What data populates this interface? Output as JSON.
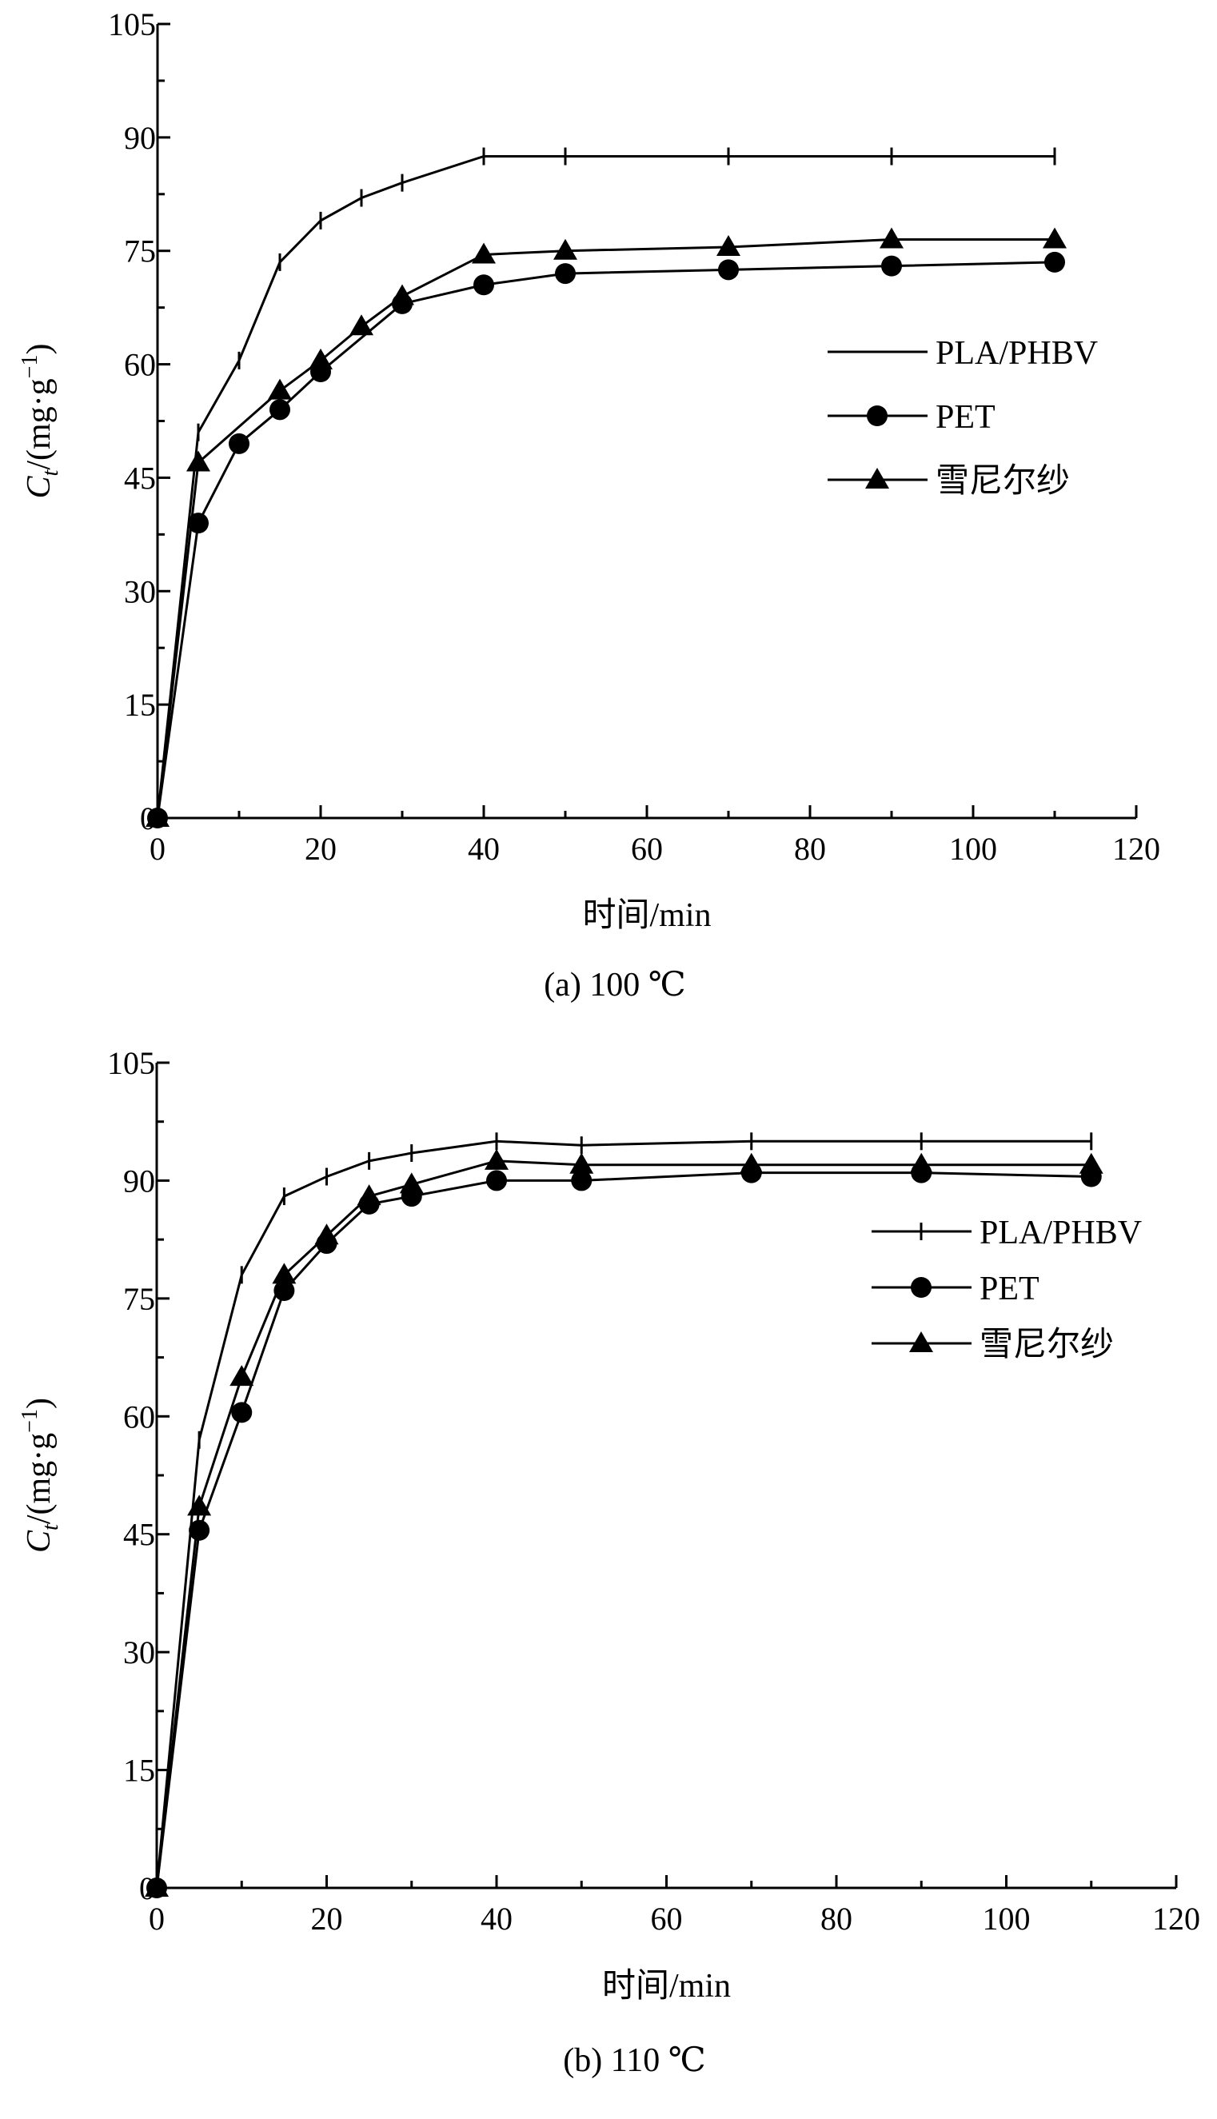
{
  "chart_data": [
    {
      "type": "line",
      "caption": "(a) 100 ℃",
      "xlabel": "时间/min",
      "ylabel_main": "C",
      "ylabel_sub": "t",
      "ylabel_unit": "/(mg·g",
      "ylabel_sup": "−1",
      "ylabel_close": ")",
      "xlim": [
        0,
        120
      ],
      "ylim": [
        0,
        105
      ],
      "xticks": [
        0,
        20,
        40,
        60,
        80,
        100,
        120
      ],
      "yticks": [
        0,
        15,
        30,
        45,
        60,
        75,
        90,
        105
      ],
      "grid": false,
      "legend_position": "center-right",
      "legend_tick_marker": false,
      "series": [
        {
          "name": "PLA/PHBV",
          "marker": "tick",
          "x": [
            0,
            5,
            10,
            15,
            20,
            25,
            30,
            40,
            50,
            70,
            90,
            110
          ],
          "y": [
            0,
            51,
            60.5,
            73.5,
            79,
            82,
            84,
            87.5,
            87.5,
            87.5,
            87.5,
            87.5
          ]
        },
        {
          "name": "PET",
          "marker": "circle",
          "x": [
            0,
            5,
            10,
            15,
            20,
            30,
            40,
            50,
            70,
            90,
            110
          ],
          "y": [
            0,
            39,
            49.5,
            54,
            59,
            68,
            70.5,
            72,
            72.5,
            73,
            73.5
          ]
        },
        {
          "name": "雪尼尔纱",
          "marker": "triangle",
          "x": [
            0,
            5,
            15,
            20,
            25,
            30,
            40,
            50,
            70,
            90,
            110
          ],
          "y": [
            0,
            47,
            56.5,
            60.5,
            65,
            69,
            74.5,
            75,
            75.5,
            76.5,
            76.5
          ]
        }
      ]
    },
    {
      "type": "line",
      "caption": "(b) 110 ℃",
      "xlabel": "时间/min",
      "ylabel_main": "C",
      "ylabel_sub": "t",
      "ylabel_unit": "/(mg·g",
      "ylabel_sup": "−1",
      "ylabel_close": ")",
      "xlim": [
        0,
        120
      ],
      "ylim": [
        0,
        105
      ],
      "xticks": [
        0,
        20,
        40,
        60,
        80,
        100,
        120
      ],
      "yticks": [
        0,
        15,
        30,
        45,
        60,
        75,
        90,
        105
      ],
      "grid": false,
      "legend_position": "top-right",
      "legend_tick_marker": true,
      "series": [
        {
          "name": "PLA/PHBV",
          "marker": "tick",
          "x": [
            0,
            5,
            10,
            15,
            20,
            25,
            30,
            40,
            50,
            70,
            90,
            110
          ],
          "y": [
            0,
            57,
            78,
            88,
            90.5,
            92.5,
            93.5,
            95,
            94.5,
            95,
            95,
            95
          ]
        },
        {
          "name": "PET",
          "marker": "circle",
          "x": [
            0,
            5,
            10,
            15,
            20,
            25,
            30,
            40,
            50,
            70,
            90,
            110
          ],
          "y": [
            0,
            45.5,
            60.5,
            76,
            82,
            87,
            88,
            90,
            90,
            91,
            91,
            90.5
          ]
        },
        {
          "name": "雪尼尔纱",
          "marker": "triangle",
          "x": [
            0,
            5,
            10,
            15,
            20,
            25,
            30,
            40,
            50,
            70,
            90,
            110
          ],
          "y": [
            0,
            48.5,
            65,
            78,
            83,
            88,
            89.5,
            92.5,
            92,
            92,
            92,
            92
          ]
        }
      ]
    }
  ]
}
